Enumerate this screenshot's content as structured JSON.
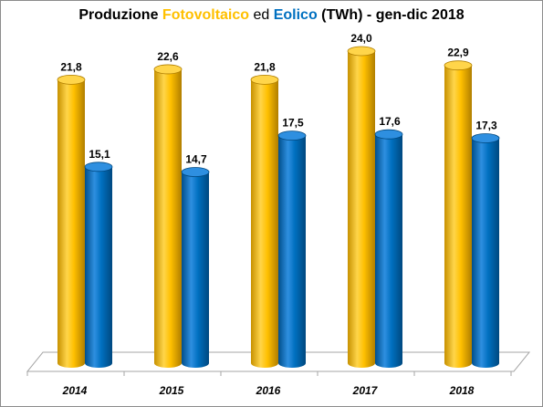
{
  "title": {
    "part1": "Produzione ",
    "part2": "Fotovoltaico",
    "part3": " ed ",
    "part4": "Eolico",
    "part5": " (TWh) - gen-dic 2018"
  },
  "colors": {
    "fotovoltaico": "#FFC000",
    "eolico": "#0070C0"
  },
  "chart_data": {
    "type": "bar",
    "categories": [
      "2014",
      "2015",
      "2016",
      "2017",
      "2018"
    ],
    "series": [
      {
        "name": "Fotovoltaico",
        "values": [
          21.8,
          22.6,
          21.8,
          24.0,
          22.9
        ],
        "labels": [
          "21,8",
          "22,6",
          "21,8",
          "24,0",
          "22,9"
        ]
      },
      {
        "name": "Eolico",
        "values": [
          15.1,
          14.7,
          17.5,
          17.6,
          17.3
        ],
        "labels": [
          "15,1",
          "14,7",
          "17,5",
          "17,6",
          "17,3"
        ]
      }
    ],
    "title": "Produzione Fotovoltaico ed Eolico (TWh) - gen-dic 2018",
    "xlabel": "",
    "ylabel": "",
    "ylim": [
      0,
      24
    ],
    "grid": false,
    "legend": "none",
    "style": "3d-cylinder"
  }
}
